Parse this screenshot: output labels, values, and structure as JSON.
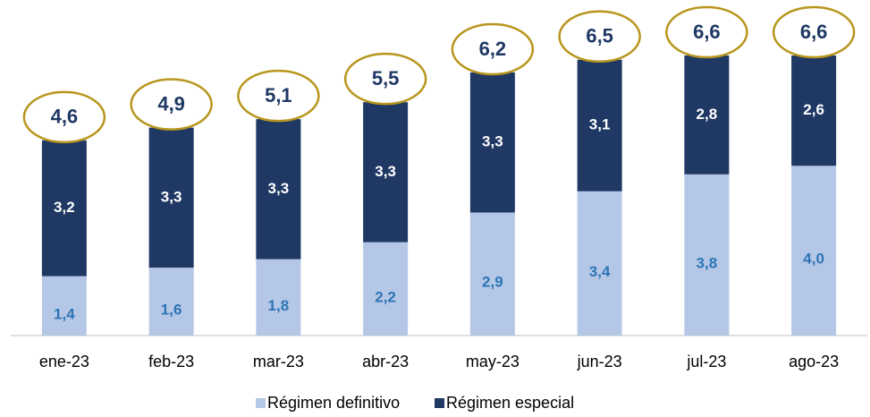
{
  "chart_data": {
    "type": "stacked_bar",
    "categories": [
      "ene-23",
      "feb-23",
      "mar-23",
      "abr-23",
      "may-23",
      "jun-23",
      "jul-23",
      "ago-23"
    ],
    "series": [
      {
        "name": "Régimen definitivo",
        "color": "#b4c7e7",
        "values": [
          1.4,
          1.6,
          1.8,
          2.2,
          2.9,
          3.4,
          3.8,
          4.0
        ],
        "value_labels": [
          "1,4",
          "1,6",
          "1,8",
          "2,2",
          "2,9",
          "3,4",
          "3,8",
          "4,0"
        ]
      },
      {
        "name": "Régimen especial",
        "color": "#1f3864",
        "values": [
          3.2,
          3.3,
          3.3,
          3.3,
          3.3,
          3.1,
          2.8,
          2.6
        ],
        "value_labels": [
          "3,2",
          "3,3",
          "3,3",
          "3,3",
          "3,3",
          "3,1",
          "2,8",
          "2,6"
        ]
      }
    ],
    "totals": [
      4.6,
      4.9,
      5.1,
      5.5,
      6.2,
      6.5,
      6.6,
      6.6
    ],
    "total_labels": [
      "4,6",
      "4,9",
      "5,1",
      "5,5",
      "6,2",
      "6,5",
      "6,6",
      "6,6"
    ],
    "legend": "bottom"
  }
}
